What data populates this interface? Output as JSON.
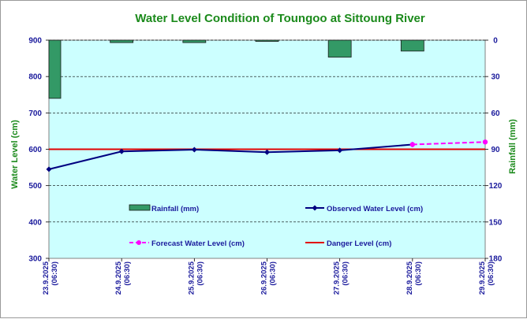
{
  "colors": {
    "plot_bg": "#ccffff",
    "title": "#1b8a1b",
    "axis_text": "#1a1a9c",
    "rain_fill": "#339966",
    "observed": "#000080",
    "forecast": "#ff00ff",
    "danger": "#e00000"
  },
  "chart_data": {
    "type": "line",
    "title": "Water Level Condition of Toungoo at  Sittoung River",
    "ylabel": "Water Level (cm)",
    "y2label": "Rainfall (mm)",
    "ylim": [
      300,
      900
    ],
    "yticks": [
      900,
      800,
      700,
      600,
      500,
      400,
      300
    ],
    "y2lim": [
      0,
      180
    ],
    "y2ticks": [
      0,
      30,
      60,
      90,
      120,
      150,
      180
    ],
    "dates": [
      [
        "23.9.2025",
        "(06:30)"
      ],
      [
        "24.9.2025",
        "(06:30)"
      ],
      [
        "25.9.2025",
        "(06:30)"
      ],
      [
        "26.9.2025",
        "(06:30)"
      ],
      [
        "27.9.2025",
        "(06:30)"
      ],
      [
        "28.9.2025",
        "(06:30)"
      ],
      [
        "29.9.2025",
        "(06:30)"
      ]
    ],
    "rainfall": {
      "name": "Rainfall (mm)",
      "values": [
        48,
        2,
        2,
        1,
        14,
        9,
        null
      ]
    },
    "observed": {
      "name": "Observed Water Level (cm)",
      "values": [
        545,
        594,
        599,
        592,
        597,
        613,
        null
      ]
    },
    "forecast": {
      "name": "Forecast Water Level (cm)",
      "values": [
        null,
        null,
        null,
        null,
        null,
        613,
        620
      ]
    },
    "danger": {
      "name": "Danger Level (cm)",
      "value": 600
    }
  }
}
